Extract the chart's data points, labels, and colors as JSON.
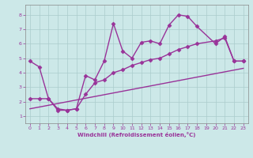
{
  "xlabel": "Windchill (Refroidissement éolien,°C)",
  "xlim": [
    -0.5,
    23.5
  ],
  "ylim": [
    0.5,
    8.7
  ],
  "xticks": [
    0,
    1,
    2,
    3,
    4,
    5,
    6,
    7,
    8,
    9,
    10,
    11,
    12,
    13,
    14,
    15,
    16,
    17,
    18,
    19,
    20,
    21,
    22,
    23
  ],
  "yticks": [
    1,
    2,
    3,
    4,
    5,
    6,
    7,
    8
  ],
  "background_color": "#cce8e8",
  "grid_color": "#aacccc",
  "line_color": "#993399",
  "line1_x": [
    0,
    1,
    2,
    3,
    4,
    5,
    6,
    7,
    8,
    9,
    10,
    11,
    12,
    13,
    14,
    15,
    16,
    17,
    18,
    20,
    21,
    22,
    23
  ],
  "line1_y": [
    4.8,
    4.4,
    2.2,
    1.4,
    1.4,
    1.5,
    3.8,
    3.5,
    4.8,
    7.4,
    5.5,
    5.0,
    6.1,
    6.2,
    6.0,
    7.3,
    8.0,
    7.9,
    7.2,
    6.0,
    6.5,
    4.8,
    4.8
  ],
  "line2_x": [
    0,
    1,
    2,
    3,
    4,
    5,
    6,
    7,
    8,
    9,
    10,
    11,
    12,
    13,
    14,
    15,
    16,
    17,
    18,
    20,
    21,
    22,
    23
  ],
  "line2_y": [
    2.2,
    2.2,
    2.2,
    1.5,
    1.4,
    1.5,
    2.5,
    3.3,
    3.5,
    4.0,
    4.2,
    4.5,
    4.7,
    4.9,
    5.0,
    5.3,
    5.6,
    5.8,
    6.0,
    6.2,
    6.4,
    4.8,
    4.8
  ],
  "line3_x": [
    0,
    23
  ],
  "line3_y": [
    1.5,
    4.3
  ],
  "marker": "D",
  "marker_size": 2.5,
  "line_width": 1.0
}
